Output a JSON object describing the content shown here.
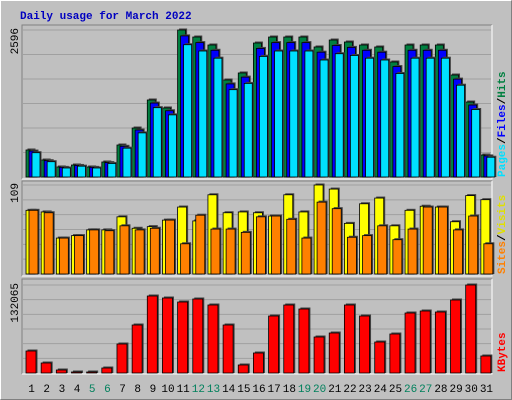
{
  "chart_data": [
    {
      "type": "bar",
      "title": "Daily usage for March 2022",
      "categories": [
        "1",
        "2",
        "3",
        "4",
        "5",
        "6",
        "7",
        "8",
        "9",
        "10",
        "11",
        "12",
        "13",
        "14",
        "15",
        "16",
        "17",
        "18",
        "19",
        "20",
        "21",
        "22",
        "23",
        "24",
        "25",
        "26",
        "27",
        "28",
        "29",
        "30",
        "31"
      ],
      "category_colors": [
        "#000000",
        "#000000",
        "#000000",
        "#000000",
        "#00805c",
        "#00805c",
        "#000000",
        "#000000",
        "#000000",
        "#000000",
        "#000000",
        "#00805c",
        "#00805c",
        "#000000",
        "#000000",
        "#000000",
        "#000000",
        "#000000",
        "#00805c",
        "#00805c",
        "#000000",
        "#000000",
        "#000000",
        "#000000",
        "#000000",
        "#00805c",
        "#00805c",
        "#000000",
        "#000000",
        "#000000",
        "#000000"
      ],
      "legend_separator": "/",
      "ylim": [
        0,
        2596
      ],
      "yticks": [
        2596
      ],
      "series": [
        {
          "name": "Hits",
          "color": "#008040",
          "values": [
            477,
            300,
            177,
            212,
            177,
            265,
            565,
            865,
            1360,
            1219,
            2596,
            2472,
            2331,
            1713,
            1837,
            2366,
            2472,
            2472,
            2472,
            2296,
            2419,
            2384,
            2331,
            2296,
            2031,
            2331,
            2331,
            2331,
            1801,
            1324,
            388
          ]
        },
        {
          "name": "Files",
          "color": "#0000ff",
          "values": [
            458,
            288,
            170,
            204,
            170,
            254,
            542,
            830,
            1306,
            1170,
            2492,
            2373,
            2238,
            1644,
            1764,
            2271,
            2373,
            2373,
            2373,
            2204,
            2322,
            2289,
            2238,
            2204,
            1950,
            2238,
            2238,
            2238,
            1729,
            1271,
            372
          ]
        },
        {
          "name": "Pages",
          "color": "#00e0ff",
          "values": [
            429,
            270,
            159,
            191,
            159,
            239,
            509,
            779,
            1224,
            1097,
            2336,
            2225,
            2098,
            1542,
            1653,
            2129,
            2225,
            2225,
            2225,
            2066,
            2177,
            2146,
            2098,
            2066,
            1828,
            2098,
            2098,
            2098,
            1621,
            1192,
            349
          ]
        }
      ]
    },
    {
      "type": "bar",
      "ylim": [
        0,
        109
      ],
      "yticks": [
        109
      ],
      "series": [
        {
          "name": "Visits",
          "color": "#ffff00",
          "values": [
            78,
            76,
            44,
            47,
            54,
            54,
            70,
            56,
            58,
            66,
            82,
            65,
            97,
            75,
            76,
            75,
            71,
            97,
            76,
            109,
            104,
            62,
            86,
            93,
            59,
            78,
            83,
            82,
            64,
            96,
            91
          ]
        },
        {
          "name": "Sites",
          "color": "#ff8000",
          "values": [
            78,
            75,
            44,
            47,
            54,
            53,
            59,
            54,
            56,
            66,
            37,
            72,
            55,
            55,
            51,
            70,
            71,
            67,
            44,
            88,
            80,
            45,
            47,
            59,
            42,
            55,
            82,
            82,
            54,
            71,
            37
          ]
        }
      ]
    },
    {
      "type": "bar",
      "ylim": [
        0,
        132065
      ],
      "yticks": [
        132065
      ],
      "series": [
        {
          "name": "KBytes",
          "color": "#ff0000",
          "values": [
            33015,
            15007,
            4502,
            1501,
            1501,
            7504,
            43520,
            72036,
            115554,
            112553,
            106550,
            111052,
            102048,
            72036,
            12006,
            30014,
            85540,
            102048,
            96045,
            54025,
            60028,
            102048,
            85540,
            46522,
            58527,
            90042,
            93043,
            91543,
            109551,
            132065,
            25512
          ]
        }
      ]
    }
  ]
}
